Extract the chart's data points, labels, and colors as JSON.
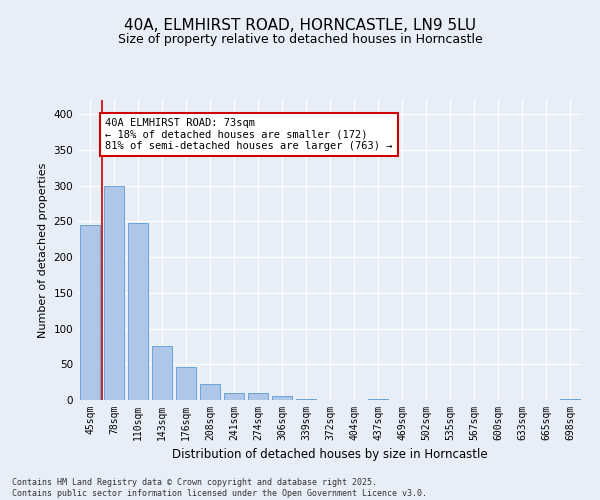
{
  "title1": "40A, ELMHIRST ROAD, HORNCASTLE, LN9 5LU",
  "title2": "Size of property relative to detached houses in Horncastle",
  "xlabel": "Distribution of detached houses by size in Horncastle",
  "ylabel": "Number of detached properties",
  "categories": [
    "45sqm",
    "78sqm",
    "110sqm",
    "143sqm",
    "176sqm",
    "208sqm",
    "241sqm",
    "274sqm",
    "306sqm",
    "339sqm",
    "372sqm",
    "404sqm",
    "437sqm",
    "469sqm",
    "502sqm",
    "535sqm",
    "567sqm",
    "600sqm",
    "633sqm",
    "665sqm",
    "698sqm"
  ],
  "values": [
    245,
    300,
    248,
    75,
    46,
    22,
    10,
    10,
    6,
    2,
    0,
    0,
    2,
    0,
    0,
    0,
    0,
    0,
    0,
    0,
    2
  ],
  "bar_color": "#aec6e8",
  "bar_edge_color": "#5b9bd5",
  "vline_color": "#cc0000",
  "annotation_text": "40A ELMHIRST ROAD: 73sqm\n← 18% of detached houses are smaller (172)\n81% of semi-detached houses are larger (763) →",
  "annotation_box_color": "#ffffff",
  "annotation_box_edge": "#cc0000",
  "ylim": [
    0,
    420
  ],
  "yticks": [
    0,
    50,
    100,
    150,
    200,
    250,
    300,
    350,
    400
  ],
  "bg_color": "#e8eef7",
  "plot_bg_color": "#e8eef7",
  "footer": "Contains HM Land Registry data © Crown copyright and database right 2025.\nContains public sector information licensed under the Open Government Licence v3.0.",
  "grid_color": "#ffffff",
  "title_fontsize": 11,
  "subtitle_fontsize": 9,
  "tick_fontsize": 7,
  "ylabel_fontsize": 8,
  "xlabel_fontsize": 8.5
}
